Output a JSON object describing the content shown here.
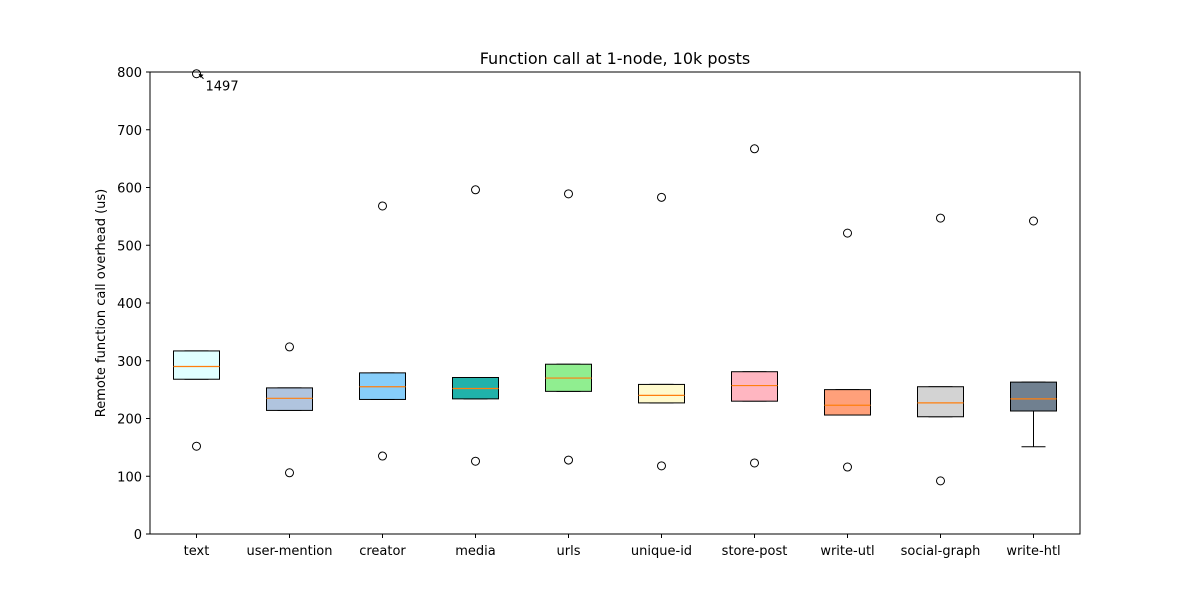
{
  "chart_data": {
    "type": "box",
    "title": "Function call at 1-node, 10k posts",
    "xlabel": "",
    "ylabel": "Remote function call overhead (us)",
    "ylim": [
      0,
      800
    ],
    "yticks": [
      0,
      100,
      200,
      300,
      400,
      500,
      600,
      700,
      800
    ],
    "grid": false,
    "median_color": "#ff7f0e",
    "categories": [
      "text",
      "user-mention",
      "creator",
      "media",
      "urls",
      "unique-id",
      "store-post",
      "write-utl",
      "social-graph",
      "write-htl"
    ],
    "boxes": [
      {
        "label": "text",
        "q1": 268,
        "median": 290,
        "q3": 317,
        "whisker_low": 268,
        "whisker_high": 317,
        "fliers": [
          152,
          797
        ],
        "color": "#e0ffff"
      },
      {
        "label": "user-mention",
        "q1": 214,
        "median": 235,
        "q3": 253,
        "whisker_low": 214,
        "whisker_high": 253,
        "fliers": [
          106,
          324
        ],
        "color": "#b0c4de"
      },
      {
        "label": "creator",
        "q1": 233,
        "median": 255,
        "q3": 279,
        "whisker_low": 233,
        "whisker_high": 279,
        "fliers": [
          135,
          568
        ],
        "color": "#87cefa"
      },
      {
        "label": "media",
        "q1": 234,
        "median": 252,
        "q3": 271,
        "whisker_low": 234,
        "whisker_high": 271,
        "fliers": [
          126,
          596
        ],
        "color": "#20b2aa"
      },
      {
        "label": "urls",
        "q1": 247,
        "median": 270,
        "q3": 294,
        "whisker_low": 247,
        "whisker_high": 294,
        "fliers": [
          128,
          589
        ],
        "color": "#90ee90"
      },
      {
        "label": "unique-id",
        "q1": 227,
        "median": 240,
        "q3": 259,
        "whisker_low": 227,
        "whisker_high": 259,
        "fliers": [
          118,
          583
        ],
        "color": "#fffacd"
      },
      {
        "label": "store-post",
        "q1": 230,
        "median": 257,
        "q3": 281,
        "whisker_low": 230,
        "whisker_high": 281,
        "fliers": [
          123,
          667
        ],
        "color": "#ffb6c1"
      },
      {
        "label": "write-utl",
        "q1": 206,
        "median": 223,
        "q3": 250,
        "whisker_low": 206,
        "whisker_high": 250,
        "fliers": [
          116,
          521
        ],
        "color": "#ffa07a"
      },
      {
        "label": "social-graph",
        "q1": 203,
        "median": 227,
        "q3": 255,
        "whisker_low": 203,
        "whisker_high": 255,
        "fliers": [
          92,
          547
        ],
        "color": "#d3d3d3"
      },
      {
        "label": "write-htl",
        "q1": 213,
        "median": 234,
        "q3": 263,
        "whisker_low": 151,
        "whisker_high": 263,
        "fliers": [
          542
        ],
        "color": "#708090"
      }
    ],
    "annotations": [
      {
        "text": "1497",
        "category": "text",
        "y": 797,
        "arrow": true
      }
    ]
  }
}
